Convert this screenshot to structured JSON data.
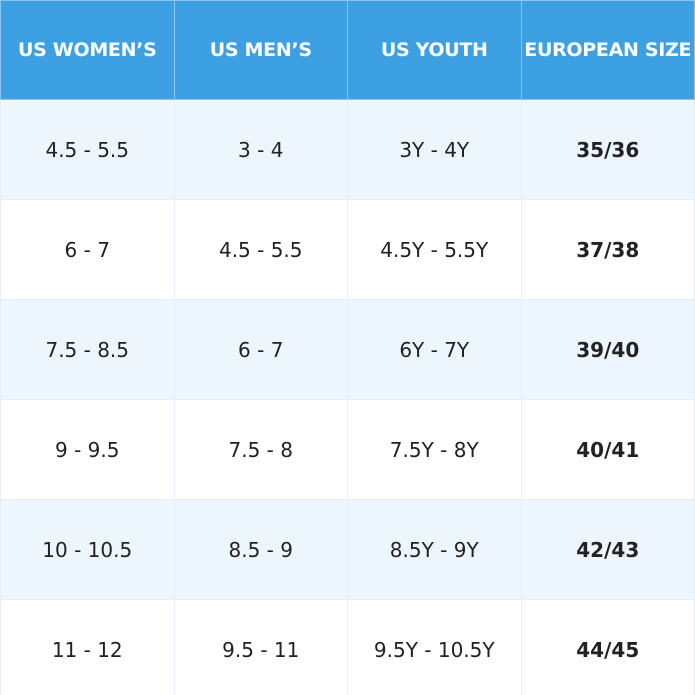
{
  "table": {
    "header": [
      "US WOMEN’S",
      "US MEN’S",
      "US YOUTH",
      "EUROPEAN SIZE"
    ],
    "rows": [
      [
        "4.5 - 5.5",
        "3 - 4",
        "3Y - 4Y",
        "35/36"
      ],
      [
        "6 - 7",
        "4.5 - 5.5",
        "4.5Y - 5.5Y",
        "37/38"
      ],
      [
        "7.5 - 8.5",
        "6 - 7",
        "6Y - 7Y",
        "39/40"
      ],
      [
        "9 - 9.5",
        "7.5 - 8",
        "7.5Y - 8Y",
        "40/41"
      ],
      [
        "10 - 10.5",
        "8.5 - 9",
        "8.5Y - 9Y",
        "42/43"
      ],
      [
        "11 - 12",
        "9.5 - 11",
        "9.5Y - 10.5Y",
        "44/45"
      ]
    ]
  }
}
